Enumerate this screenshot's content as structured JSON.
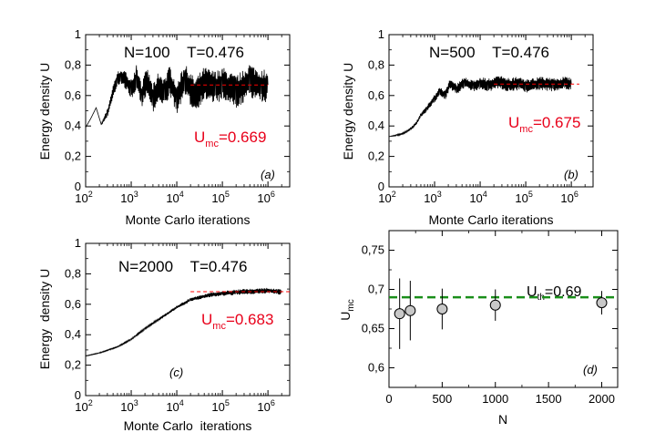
{
  "chart_data": [
    {
      "panel_label": "(a)",
      "type": "line",
      "title": "N=100    T=0.476",
      "xlabel": "Monte Carlo iterations",
      "ylabel": "Energy density U",
      "xscale": "log",
      "xlim": [
        100,
        3000000
      ],
      "ylim": [
        0,
        1
      ],
      "xtick_exponents": [
        "2",
        "3",
        "4",
        "5",
        "6"
      ],
      "yticks": [
        "0",
        "0,2",
        "0,4",
        "0,6",
        "0,8",
        "1"
      ],
      "annotation": {
        "main": "U",
        "sub": "mc",
        "rest": "=0.669"
      },
      "reference_line": {
        "y": 0.669,
        "x_range": [
          20000,
          1000000
        ],
        "color": "#ff0000"
      },
      "series": [
        {
          "color": "#000000",
          "x": [
            100,
            130,
            170,
            220,
            260,
            300,
            400,
            500,
            600,
            800,
            1000,
            1300,
            1700,
            2200,
            3000,
            4000,
            5500,
            7000,
            10000,
            15000,
            25000,
            40000,
            70000,
            100000,
            200000,
            400000,
            700000,
            1000000
          ],
          "y": [
            0.39,
            0.45,
            0.52,
            0.41,
            0.45,
            0.48,
            0.63,
            0.71,
            0.73,
            0.69,
            0.64,
            0.72,
            0.6,
            0.7,
            0.58,
            0.66,
            0.62,
            0.7,
            0.58,
            0.7,
            0.6,
            0.68,
            0.65,
            0.68,
            0.62,
            0.7,
            0.66,
            0.67
          ],
          "noise": [
            0,
            0,
            0,
            0,
            0.02,
            0.03,
            0.04,
            0.05,
            0.05,
            0.06,
            0.07,
            0.08,
            0.08,
            0.09,
            0.09,
            0.1,
            0.1,
            0.1,
            0.1,
            0.11,
            0.11,
            0.11,
            0.11,
            0.11,
            0.11,
            0.11,
            0.11,
            0.11
          ]
        }
      ]
    },
    {
      "panel_label": "(b)",
      "type": "line",
      "title": "N=500    T=0.476",
      "xlabel": "Monte Carlo iterations",
      "ylabel": "Energy density U",
      "xscale": "log",
      "xlim": [
        100,
        3000000
      ],
      "ylim": [
        0,
        1
      ],
      "xtick_exponents": [
        "2",
        "3",
        "4",
        "5",
        "6"
      ],
      "yticks": [
        "0",
        "0,2",
        "0,4",
        "0,6",
        "0,8",
        "1"
      ],
      "annotation": {
        "main": "U",
        "sub": "mc",
        "rest": "=0.675"
      },
      "reference_line": {
        "y": 0.675,
        "x_range": [
          20000,
          1500000
        ],
        "color": "#ff0000"
      },
      "series": [
        {
          "color": "#000000",
          "x": [
            100,
            150,
            200,
            300,
            400,
            500,
            700,
            1000,
            1300,
            1700,
            2200,
            3000,
            4500,
            7000,
            10000,
            15000,
            25000,
            40000,
            70000,
            100000,
            200000,
            400000,
            700000,
            1000000
          ],
          "y": [
            0.33,
            0.34,
            0.35,
            0.38,
            0.42,
            0.47,
            0.52,
            0.58,
            0.63,
            0.6,
            0.68,
            0.64,
            0.69,
            0.66,
            0.68,
            0.67,
            0.69,
            0.67,
            0.68,
            0.66,
            0.68,
            0.67,
            0.68,
            0.675
          ],
          "noise": [
            0,
            0.005,
            0.005,
            0.01,
            0.01,
            0.015,
            0.02,
            0.025,
            0.03,
            0.03,
            0.035,
            0.035,
            0.04,
            0.04,
            0.04,
            0.045,
            0.045,
            0.045,
            0.045,
            0.045,
            0.045,
            0.045,
            0.045,
            0.045
          ]
        }
      ]
    },
    {
      "panel_label": "(c)",
      "type": "line",
      "title": "N=2000    T=0.476",
      "xlabel": "Monte Carlo  iterations",
      "ylabel": "Energy  density U",
      "xscale": "log",
      "xlim": [
        100,
        3000000
      ],
      "ylim": [
        0,
        1
      ],
      "xtick_exponents": [
        "2",
        "3",
        "4",
        "5",
        "6"
      ],
      "yticks": [
        "0",
        "0,2",
        "0,4",
        "0,6",
        "0,8",
        "1"
      ],
      "annotation": {
        "main": "U",
        "sub": "mc",
        "rest": "=0.683"
      },
      "reference_line": {
        "y": 0.683,
        "x_range": [
          20000,
          3000000
        ],
        "color": "#ff0000"
      },
      "series": [
        {
          "color": "#000000",
          "x": [
            100,
            200,
            500,
            1000,
            2000,
            5000,
            10000,
            20000,
            50000,
            100000,
            200000,
            500000,
            1000000,
            2000000
          ],
          "y": [
            0.26,
            0.28,
            0.32,
            0.37,
            0.44,
            0.52,
            0.58,
            0.63,
            0.66,
            0.67,
            0.68,
            0.685,
            0.69,
            0.68
          ],
          "noise": [
            0.002,
            0.003,
            0.004,
            0.005,
            0.006,
            0.008,
            0.01,
            0.012,
            0.014,
            0.016,
            0.018,
            0.018,
            0.018,
            0.018
          ]
        }
      ]
    },
    {
      "panel_label": "(d)",
      "type": "scatter",
      "xlabel": "N",
      "ylabel": {
        "main": "U",
        "sub": "mc"
      },
      "xlim": [
        0,
        2150
      ],
      "ylim": [
        0.575,
        0.775
      ],
      "xticks": [
        0,
        500,
        1000,
        1500,
        2000
      ],
      "yticks": [
        "0,6",
        "0,65",
        "0,7",
        "0,75"
      ],
      "ytick_values": [
        0.6,
        0.65,
        0.7,
        0.75
      ],
      "annotation": {
        "main": "U",
        "sub": "th",
        "rest": "=0.69"
      },
      "reference_line": {
        "y": 0.69,
        "color": "#1a8f1a",
        "style": "dashed"
      },
      "series": [
        {
          "x": [
            100,
            200,
            500,
            1000,
            2000
          ],
          "y": [
            0.669,
            0.673,
            0.675,
            0.68,
            0.683
          ],
          "error": [
            0.045,
            0.038,
            0.026,
            0.02,
            0.015
          ],
          "marker_color": "#c8c8c8"
        }
      ]
    }
  ]
}
